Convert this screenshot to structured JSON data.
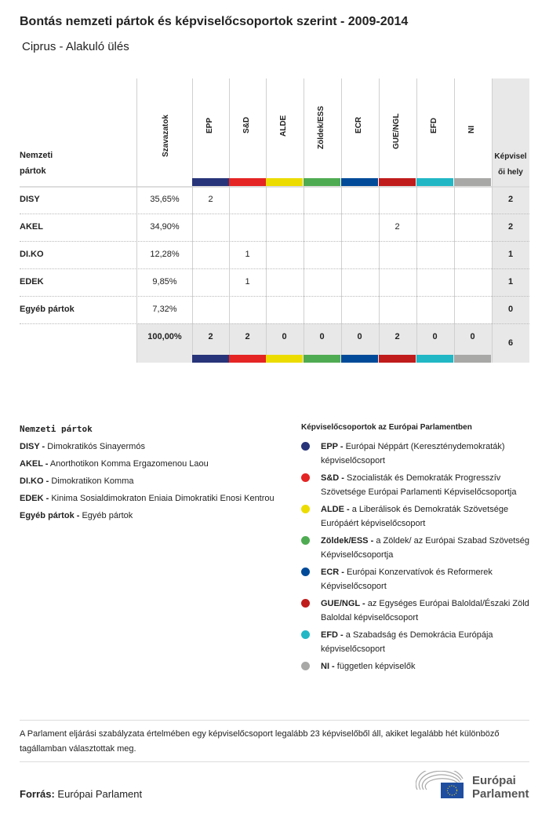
{
  "title": "Bontás nemzeti pártok és képviselőcsoportok szerint - 2009-2014",
  "subtitle": "Ciprus - Alakuló ülés",
  "table": {
    "col_party": "Nemzeti pártok",
    "col_votes": "Szavazatok",
    "col_seats": "Képviselői hely",
    "groups": [
      {
        "name": "EPP",
        "color": "#283479"
      },
      {
        "name": "S&D",
        "color": "#e42524"
      },
      {
        "name": "ALDE",
        "color": "#ecdc00"
      },
      {
        "name": "Zöldek/ESS",
        "color": "#4fab52"
      },
      {
        "name": "ECR",
        "color": "#004a99"
      },
      {
        "name": "GUE/NGL",
        "color": "#c01c1c"
      },
      {
        "name": "EFD",
        "color": "#21b7c5"
      },
      {
        "name": "NI",
        "color": "#a8a8a6"
      }
    ],
    "rows": [
      {
        "party": "DISY",
        "votes": "35,65%",
        "cells": [
          "2",
          "",
          "",
          "",
          "",
          "",
          "",
          ""
        ],
        "seats": "2"
      },
      {
        "party": "AKEL",
        "votes": "34,90%",
        "cells": [
          "",
          "",
          "",
          "",
          "",
          "2",
          "",
          ""
        ],
        "seats": "2"
      },
      {
        "party": "DI.KO",
        "votes": "12,28%",
        "cells": [
          "",
          "1",
          "",
          "",
          "",
          "",
          "",
          ""
        ],
        "seats": "1"
      },
      {
        "party": "EDEK",
        "votes": "9,85%",
        "cells": [
          "",
          "1",
          "",
          "",
          "",
          "",
          "",
          ""
        ],
        "seats": "1"
      },
      {
        "party": "Egyéb pártok",
        "votes": "7,32%",
        "cells": [
          "",
          "",
          "",
          "",
          "",
          "",
          "",
          ""
        ],
        "seats": "0"
      }
    ],
    "total": {
      "votes": "100,00%",
      "cells": [
        "2",
        "2",
        "0",
        "0",
        "0",
        "2",
        "0",
        "0"
      ],
      "seats": "6"
    }
  },
  "legend_parties": {
    "title": "Nemzeti pártok",
    "items": [
      {
        "abbr": "DISY -",
        "name": "Dimokratikós Sinayermós"
      },
      {
        "abbr": "AKEL -",
        "name": "Anorthotikon Komma Ergazomenou Laou"
      },
      {
        "abbr": "DI.KO -",
        "name": "Dimokratikon Komma"
      },
      {
        "abbr": "EDEK -",
        "name": "Kinima Sosialdimokraton Eniaia Dimokratiki Enosi Kentrou"
      },
      {
        "abbr": "Egyéb pártok -",
        "name": "Egyéb pártok"
      }
    ]
  },
  "legend_groups": {
    "title": "Képviselőcsoportok az Európai Parlamentben",
    "items": [
      {
        "abbr": "EPP -",
        "name": "Európai Néppárt (Kereszténydemokraták) képviselőcsoport",
        "color": "#283479"
      },
      {
        "abbr": "S&D -",
        "name": "Szocialisták és Demokraták Progresszív Szövetsége Európai Parlamenti Képviselőcsoportja",
        "color": "#e42524"
      },
      {
        "abbr": "ALDE -",
        "name": "a Liberálisok és Demokraták Szövetsége Európáért képviselőcsoport",
        "color": "#ecdc00"
      },
      {
        "abbr": "Zöldek/ESS -",
        "name": "a Zöldek/ az Európai Szabad Szövetség Képviselőcsoportja",
        "color": "#4fab52"
      },
      {
        "abbr": "ECR -",
        "name": "Európai Konzervatívok és Reformerek Képviselőcsoport",
        "color": "#004a99"
      },
      {
        "abbr": "GUE/NGL -",
        "name": "az Egységes Európai Baloldal/Északi Zöld Baloldal képviselőcsoport",
        "color": "#c01c1c"
      },
      {
        "abbr": "EFD -",
        "name": "a Szabadság és Demokrácia Európája képviselőcsoport",
        "color": "#21b7c5"
      },
      {
        "abbr": "NI -",
        "name": "független képviselők",
        "color": "#a8a8a6"
      }
    ]
  },
  "note": "A Parlament eljárási szabályzata értelmében egy képviselőcsoport legalább 23 képviselőből áll, akiket legalább hét különböző tagállamban választottak meg.",
  "source_label": "Forrás:",
  "source_value": "Európai Parlament",
  "logo": {
    "line1": "Európai",
    "line2": "Parlament"
  }
}
